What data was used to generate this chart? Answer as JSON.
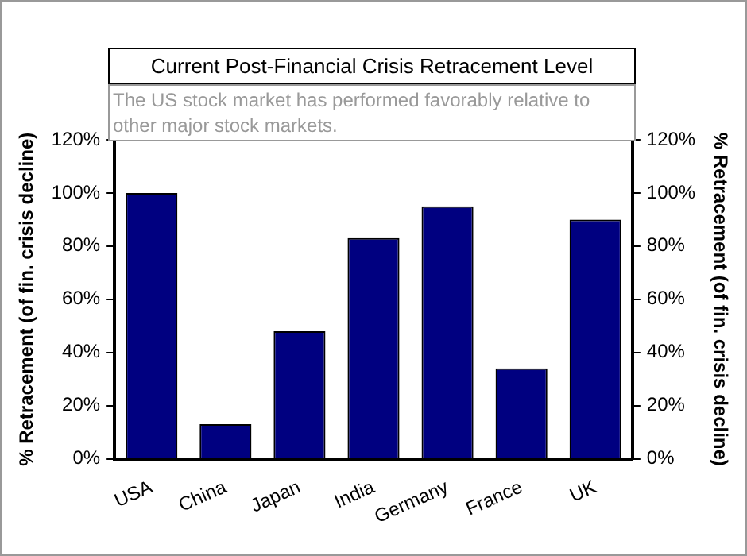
{
  "chart_data": {
    "type": "bar",
    "title": "Current Post-Financial Crisis Retracement Level",
    "annotations": [
      "The US stock market has performed favorably relative to other major stock markets."
    ],
    "categories": [
      "USA",
      "China",
      "Japan",
      "India",
      "Germany",
      "France",
      "UK"
    ],
    "values": [
      100,
      13,
      48,
      83,
      95,
      34,
      90
    ],
    "color": "#000080",
    "ylabel": "% Retracement (of fin. crisis decline)",
    "y2label": "% Retracement (of fin. crisis decline)",
    "ylim": [
      0,
      120
    ],
    "yticks": [
      {
        "value": 0,
        "label": "0%"
      },
      {
        "value": 20,
        "label": "20%"
      },
      {
        "value": 40,
        "label": "40%"
      },
      {
        "value": 60,
        "label": "60%"
      },
      {
        "value": 80,
        "label": "80%"
      },
      {
        "value": 100,
        "label": "100%"
      },
      {
        "value": 120,
        "label": "120%"
      }
    ],
    "y2lim": [
      0,
      120
    ],
    "y2ticks": [
      {
        "value": 0,
        "label": "0%"
      },
      {
        "value": 20,
        "label": "20%"
      },
      {
        "value": 40,
        "label": "40%"
      },
      {
        "value": 60,
        "label": "60%"
      },
      {
        "value": 80,
        "label": "80%"
      },
      {
        "value": 100,
        "label": "100%"
      },
      {
        "value": 120,
        "label": "120%"
      }
    ],
    "grid": false,
    "legend": false
  }
}
